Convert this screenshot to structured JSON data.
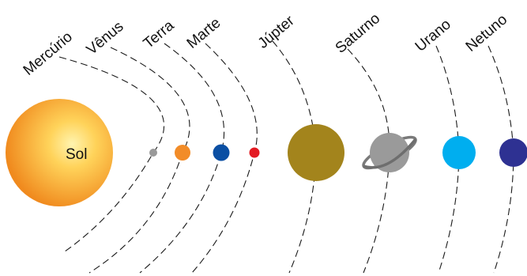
{
  "sun": {
    "label": "Sol",
    "color_light": "#ffe27a",
    "color_dark": "#f08a1e"
  },
  "planets": [
    {
      "name": "Mercúrio",
      "color": "#999999"
    },
    {
      "name": "Vênus",
      "color": "#f28c28"
    },
    {
      "name": "Terra",
      "color": "#0b4fa3"
    },
    {
      "name": "Marte",
      "color": "#e31b23"
    },
    {
      "name": "Júpter",
      "color": "#a3841c"
    },
    {
      "name": "Saturno",
      "color": "#9a9a9a"
    },
    {
      "name": "Urano",
      "color": "#00aeef"
    },
    {
      "name": "Netuno",
      "color": "#2e3192"
    }
  ]
}
